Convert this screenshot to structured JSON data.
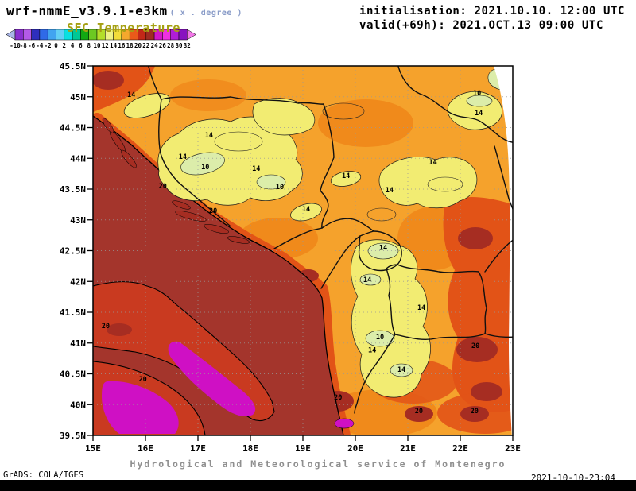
{
  "header": {
    "model_title": "wrf-nmmE_v3.9.1-e3km",
    "model_subtitle": "( x . degree )",
    "subtitle_color": "#8a9cc8",
    "field_label": "SFC Temperature",
    "field_label_color": "#a5a012",
    "init_line": "initialisation: 2021.10.10. 12:00 UTC",
    "valid_line": "valid(+69h): 2021.OCT.13 09:00 UTC"
  },
  "footer": {
    "service": "Hydrological and Meteorological service of Montenegro",
    "grads_credit": "GrADS: COLA/IGES",
    "timestamp": "2021-10-10-23:04"
  },
  "chart_data": {
    "type": "heatmap",
    "title": "SFC Temperature",
    "units": "degree",
    "extent": {
      "lon_min": 15,
      "lon_max": 23,
      "lat_min": 39.5,
      "lat_max": 45.5
    },
    "grid": true,
    "legend_position": "top-left",
    "x_ticks": [
      "15E",
      "16E",
      "17E",
      "18E",
      "19E",
      "20E",
      "21E",
      "22E",
      "23E"
    ],
    "y_ticks": [
      "45.5N",
      "45N",
      "44.5N",
      "44N",
      "43.5N",
      "43N",
      "42.5N",
      "42N",
      "41.5N",
      "41N",
      "40.5N",
      "40N",
      "39.5N"
    ],
    "colorbar": {
      "values": [
        -10,
        -8,
        -6,
        -4,
        -2,
        0,
        2,
        4,
        6,
        8,
        10,
        12,
        14,
        16,
        18,
        20,
        22,
        24,
        26,
        28,
        30,
        32
      ],
      "colors": [
        "#aab6e8",
        "#8a2fd0",
        "#b45ae8",
        "#2e2ebc",
        "#2f6ae8",
        "#41a4f0",
        "#63cff5",
        "#0ae0e0",
        "#00c896",
        "#12a812",
        "#6cc922",
        "#b4de2a",
        "#eef286",
        "#f2dd3a",
        "#f5a82d",
        "#ea5a1a",
        "#c22818",
        "#a02c22",
        "#d416c8",
        "#ef30e2",
        "#b01ed6",
        "#8812c0",
        "#f277e8"
      ]
    },
    "map_colors": {
      "sea": "#a4352c",
      "base": "#f5a22c",
      "darkorange": "#ef8418",
      "red": "#e25317",
      "darkred": "#a62d22",
      "yellow": "#f2ec72",
      "palegreen": "#dcedaa",
      "magenta": "#cf10c4",
      "italy": "#c93a20"
    },
    "contour_labels": [
      {
        "lon": 15.73,
        "lat": 45.0,
        "value": "14"
      },
      {
        "lon": 17.21,
        "lat": 44.34,
        "value": "14"
      },
      {
        "lon": 16.71,
        "lat": 43.99,
        "value": "14"
      },
      {
        "lon": 17.14,
        "lat": 43.82,
        "value": "10"
      },
      {
        "lon": 18.11,
        "lat": 43.8,
        "value": "14"
      },
      {
        "lon": 18.56,
        "lat": 43.5,
        "value": "10"
      },
      {
        "lon": 16.33,
        "lat": 43.51,
        "value": "20"
      },
      {
        "lon": 17.29,
        "lat": 43.11,
        "value": "20"
      },
      {
        "lon": 19.06,
        "lat": 43.14,
        "value": "14"
      },
      {
        "lon": 19.82,
        "lat": 43.68,
        "value": "14"
      },
      {
        "lon": 20.65,
        "lat": 43.45,
        "value": "14"
      },
      {
        "lon": 21.48,
        "lat": 43.9,
        "value": "14"
      },
      {
        "lon": 22.32,
        "lat": 45.02,
        "value": "10"
      },
      {
        "lon": 22.35,
        "lat": 44.7,
        "value": "14"
      },
      {
        "lon": 20.53,
        "lat": 42.51,
        "value": "14"
      },
      {
        "lon": 20.23,
        "lat": 41.99,
        "value": "14"
      },
      {
        "lon": 21.26,
        "lat": 41.54,
        "value": "14"
      },
      {
        "lon": 20.47,
        "lat": 41.06,
        "value": "10"
      },
      {
        "lon": 20.32,
        "lat": 40.85,
        "value": "14"
      },
      {
        "lon": 20.88,
        "lat": 40.53,
        "value": "14"
      },
      {
        "lon": 15.24,
        "lat": 41.24,
        "value": "20"
      },
      {
        "lon": 15.95,
        "lat": 40.38,
        "value": "20"
      },
      {
        "lon": 22.29,
        "lat": 40.92,
        "value": "20"
      },
      {
        "lon": 21.21,
        "lat": 39.86,
        "value": "20"
      },
      {
        "lon": 22.27,
        "lat": 39.86,
        "value": "20"
      },
      {
        "lon": 19.67,
        "lat": 40.08,
        "value": "20"
      }
    ]
  }
}
